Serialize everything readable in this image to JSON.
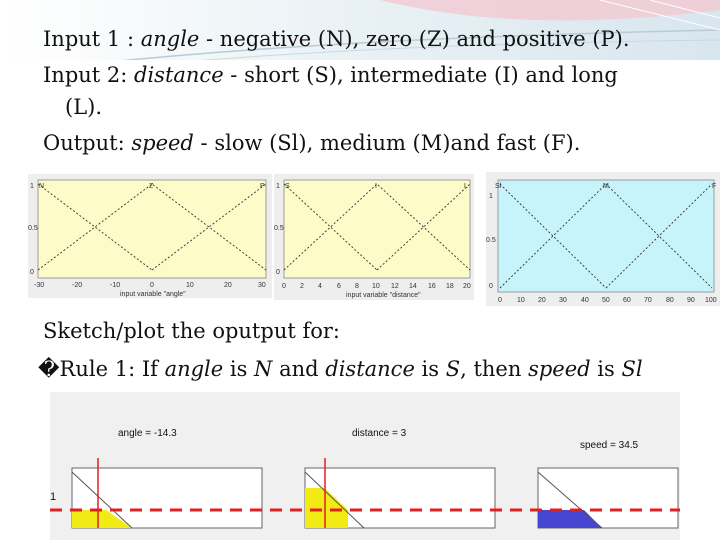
{
  "text": {
    "line1_a": "Input 1 : ",
    "line1_b": "angle",
    "line1_c": " - negative (N), zero (Z) and positive (P).",
    "line2_a": "Input 2:  ",
    "line2_b": "distance",
    "line2_c": " - short (S), intermediate (I) and long",
    "line3": "(L).",
    "line4_a": "Output: ",
    "line4_b": "speed",
    "line4_c": " - slow (Sl), medium (M)and fast (F).",
    "line5": "Sketch/plot the oputput for:",
    "rule_bullet": "�",
    "rule_a": "Rule 1: If ",
    "rule_b": "angle",
    "rule_c": " is ",
    "rule_d": "N",
    "rule_e": " and ",
    "rule_f": "distance",
    "rule_g": " is ",
    "rule_h": "S",
    "rule_i": ", then ",
    "rule_j": "speed",
    "rule_k": " is ",
    "rule_l": "Sl"
  },
  "plot1": {
    "labels": [
      "N",
      "Z",
      "P"
    ],
    "y_ticks": [
      "1",
      "0.5",
      "0"
    ],
    "x_ticks": [
      "-30",
      "-20",
      "-10",
      "0",
      "10",
      "20",
      "30"
    ],
    "xlabel": "input variable \"angle\""
  },
  "plot2": {
    "labels": [
      "S",
      "I",
      "L"
    ],
    "y_ticks": [
      "1",
      "0.5",
      "0"
    ],
    "x_ticks": [
      "0",
      "2",
      "4",
      "6",
      "8",
      "10",
      "12",
      "14",
      "16",
      "18",
      "20"
    ],
    "xlabel": "input variable \"distance\""
  },
  "plot3": {
    "labels": [
      "Sl",
      "M",
      "F"
    ],
    "y_ticks": [
      "1",
      "0.5",
      "0"
    ],
    "x_ticks": [
      "0",
      "10",
      "20",
      "30",
      "40",
      "50",
      "60",
      "70",
      "80",
      "90",
      "100"
    ]
  },
  "bottom": {
    "angle_label": "angle = -14.3",
    "distance_label": "distance = 3",
    "speed_label": "speed = 34.5",
    "one_label": "1"
  },
  "colors": {
    "plot_bg_yellow": "#fdfbc8",
    "plot_bg_blue": "#c7f3fb",
    "fill_yellow": "#f2ea14",
    "fill_blue": "#4646d2",
    "dashed_red": "#e02020"
  }
}
